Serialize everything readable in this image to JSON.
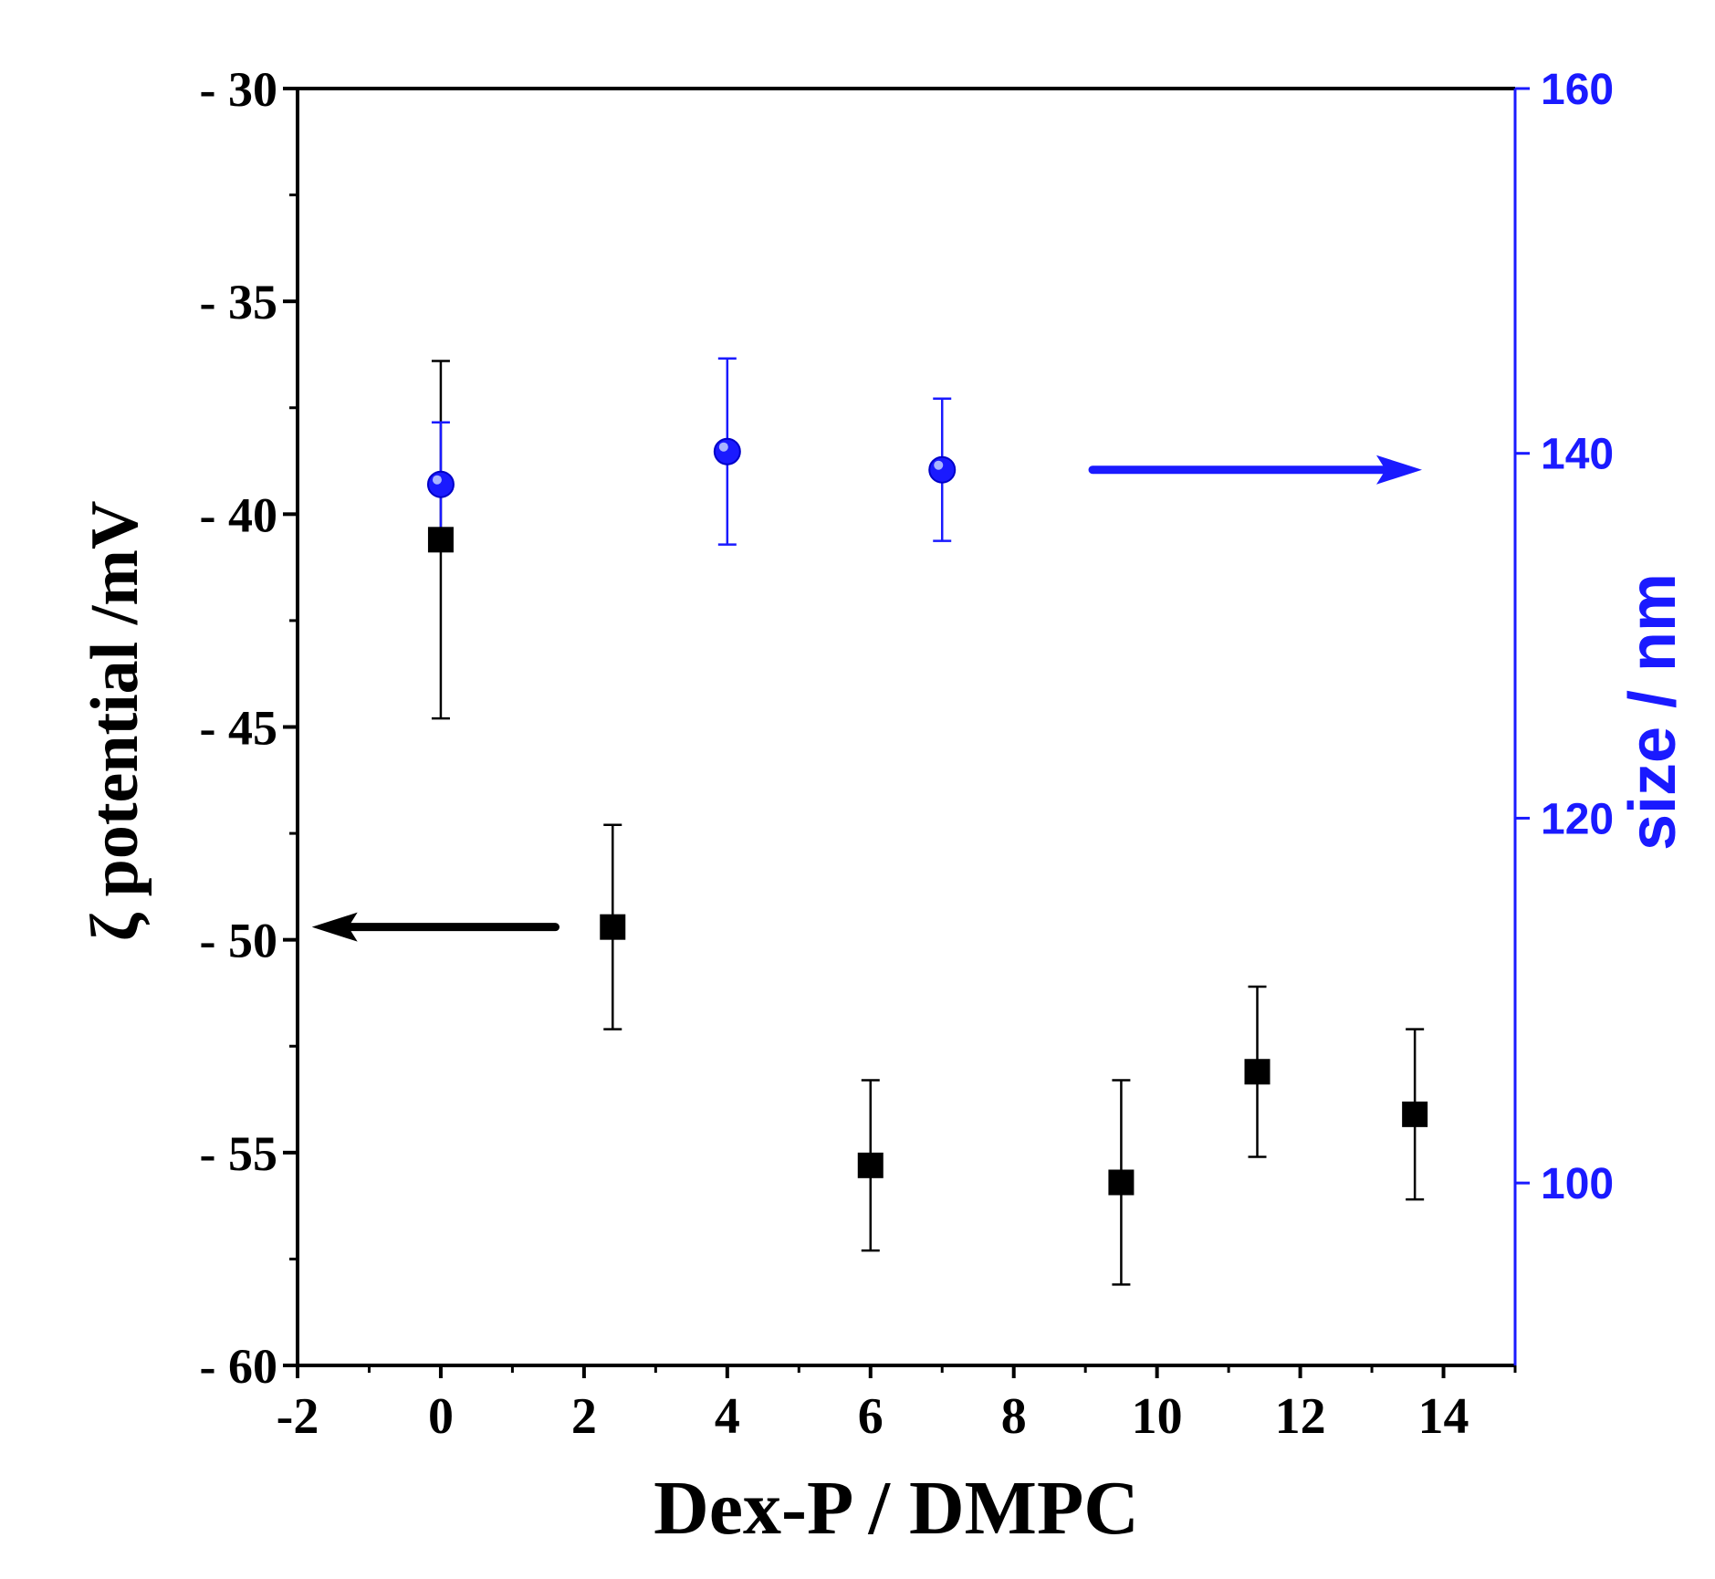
{
  "chart_data": {
    "type": "scatter",
    "xlabel": "Dex-P / DMPC",
    "xlim": [
      -2,
      15
    ],
    "x_ticks": [
      -2,
      0,
      2,
      4,
      6,
      8,
      10,
      12,
      14
    ],
    "x_tick_labels": [
      "-2",
      "0",
      "2",
      "4",
      "6",
      "8",
      "10",
      "12",
      "14"
    ],
    "y_left": {
      "label": "ζ potential /mV",
      "ylim": [
        -60,
        -30
      ],
      "ticks": [
        -30,
        -35,
        -40,
        -45,
        -50,
        -55,
        -60
      ],
      "tick_labels": [
        "- 30",
        "- 35",
        "- 40",
        "- 45",
        "- 50",
        "- 55",
        "- 60"
      ],
      "color": "#000000"
    },
    "y_right": {
      "label": "size / nm",
      "ylim": [
        90,
        160
      ],
      "ticks": [
        160,
        140,
        120,
        100
      ],
      "tick_labels": [
        "160",
        "140",
        "120",
        "100"
      ],
      "color": "#1a1aff"
    },
    "series": [
      {
        "name": "zeta potential",
        "axis": "left",
        "marker": "square",
        "color": "#000000",
        "points": [
          {
            "x": 0,
            "y": -40.6,
            "err": 4.2
          },
          {
            "x": 2.4,
            "y": -49.7,
            "err": 2.4
          },
          {
            "x": 6,
            "y": -55.3,
            "err": 2.0
          },
          {
            "x": 9.5,
            "y": -55.7,
            "err": 2.4
          },
          {
            "x": 11.4,
            "y": -53.1,
            "err": 2.0
          },
          {
            "x": 13.6,
            "y": -54.1,
            "err": 2.0
          }
        ]
      },
      {
        "name": "size",
        "axis": "right",
        "marker": "circle",
        "color": "#1a1aff",
        "points": [
          {
            "x": 0,
            "y": 138.3,
            "err": 3.4
          },
          {
            "x": 4,
            "y": 140.1,
            "err": 5.1
          },
          {
            "x": 7,
            "y": 139.1,
            "err": 3.9
          }
        ]
      }
    ],
    "annotations": [
      {
        "type": "arrow",
        "direction": "left",
        "axis": "left",
        "color": "#000000",
        "from_x": 1.6,
        "to_x": -1.8,
        "y": -49.7
      },
      {
        "type": "arrow",
        "direction": "right",
        "axis": "right",
        "color": "#1a1aff",
        "from_x": 9.1,
        "to_x": 13.7,
        "y": 139.1
      }
    ]
  }
}
